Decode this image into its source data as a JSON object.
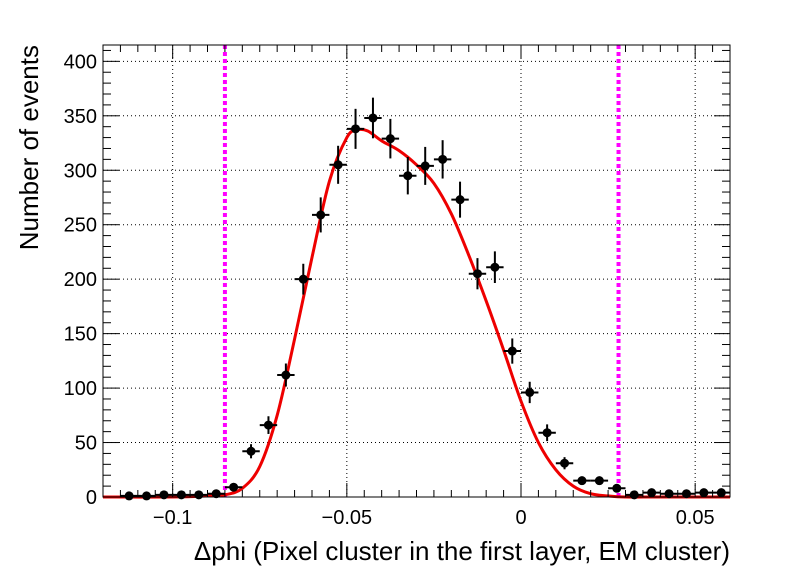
{
  "chart_data": {
    "type": "scatter",
    "title": "",
    "xlabel": "Δphi (Pixel cluster in the first layer, EM cluster)",
    "ylabel": "Number of events",
    "xlim": [
      -0.12,
      0.06
    ],
    "ylim": [
      0,
      415
    ],
    "grid": true,
    "x_ticks": [
      -0.1,
      -0.05,
      0,
      0.05
    ],
    "x_tick_labels": [
      "−0.1",
      "−0.05",
      "0",
      "0.05"
    ],
    "y_ticks": [
      0,
      50,
      100,
      150,
      200,
      250,
      300,
      350,
      400
    ],
    "y_tick_labels": [
      "0",
      "50",
      "100",
      "150",
      "200",
      "250",
      "300",
      "350",
      "400"
    ],
    "bin_half_width": 0.0025,
    "data_points": {
      "x": [
        -0.1125,
        -0.1075,
        -0.1025,
        -0.0975,
        -0.0925,
        -0.0875,
        -0.0825,
        -0.0775,
        -0.0725,
        -0.0675,
        -0.0625,
        -0.0575,
        -0.0525,
        -0.0475,
        -0.0425,
        -0.0375,
        -0.0325,
        -0.0275,
        -0.0225,
        -0.0175,
        -0.0125,
        -0.0075,
        -0.0025,
        0.0025,
        0.0075,
        0.0125,
        0.0175,
        0.0225,
        0.0275,
        0.0325,
        0.0375,
        0.0425,
        0.0475,
        0.0525,
        0.0575
      ],
      "y": [
        1,
        1,
        2,
        2,
        2,
        3,
        9,
        42,
        66,
        112,
        200,
        259,
        305,
        338,
        348,
        329,
        295,
        304,
        310,
        273,
        205,
        211,
        134,
        96,
        59,
        31,
        15,
        15,
        8,
        2,
        4,
        3,
        3,
        4,
        4
      ]
    },
    "fit_curve": {
      "color": "#ee0000",
      "x": [
        -0.12,
        -0.1,
        -0.09,
        -0.085,
        -0.08,
        -0.075,
        -0.07,
        -0.065,
        -0.06,
        -0.055,
        -0.05,
        -0.047,
        -0.044,
        -0.04,
        -0.035,
        -0.03,
        -0.025,
        -0.02,
        -0.015,
        -0.01,
        -0.005,
        0,
        0.005,
        0.01,
        0.015,
        0.02,
        0.025,
        0.03,
        0.04,
        0.06
      ],
      "y": [
        0,
        0,
        1,
        2,
        8,
        28,
        75,
        145,
        220,
        290,
        330,
        337,
        336,
        327,
        318,
        305,
        288,
        260,
        222,
        180,
        135,
        88,
        50,
        25,
        10,
        3,
        1,
        0,
        0,
        0
      ]
    },
    "cut_lines": {
      "color": "#ff00ff",
      "x": [
        -0.085,
        0.028
      ]
    }
  }
}
